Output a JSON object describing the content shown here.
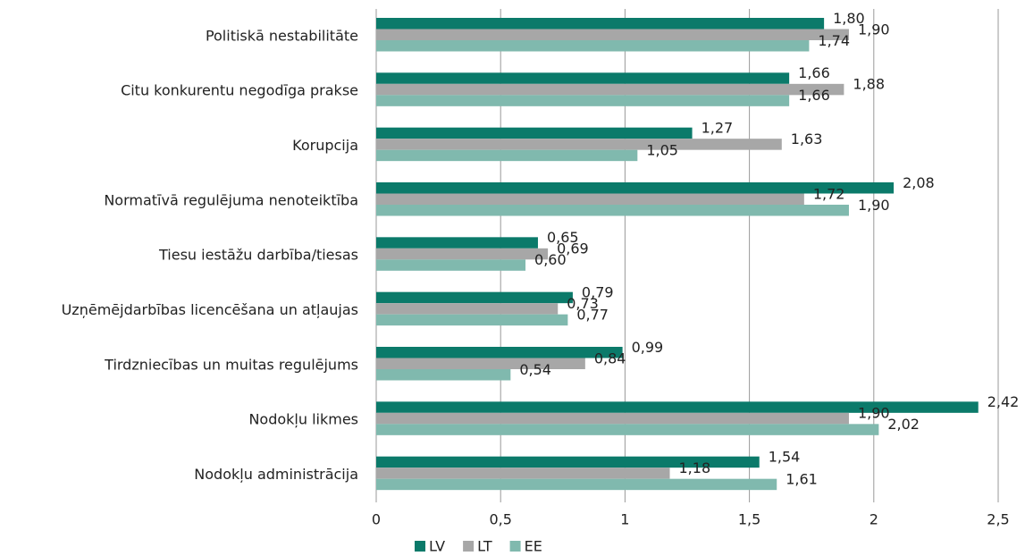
{
  "chart_data": {
    "type": "bar",
    "orientation": "horizontal",
    "categories": [
      "Politiskā nestabilitāte",
      "Citu konkurentu negodīga prakse",
      "Korupcija",
      "Normatīvā regulējuma nenoteiktība",
      "Tiesu iestāžu darbība/tiesas",
      "Uzņēmējdarbības licencēšana un atļaujas",
      "Tirdzniecības un muitas regulējums",
      "Nodokļu likmes",
      "Nodokļu administrācija"
    ],
    "series": [
      {
        "name": "LV",
        "color": "#0b7a6a",
        "values": [
          1.8,
          1.66,
          1.27,
          2.08,
          0.65,
          0.79,
          0.99,
          2.42,
          1.54
        ],
        "value_labels": [
          "1,80",
          "1,66",
          "1,27",
          "2,08",
          "0,65",
          "0,79",
          "0,99",
          "2,42",
          "1,54"
        ]
      },
      {
        "name": "LT",
        "color": "#a7a7a7",
        "values": [
          1.9,
          1.88,
          1.63,
          1.72,
          0.69,
          0.73,
          0.84,
          1.9,
          1.18
        ],
        "value_labels": [
          "1,90",
          "1,88",
          "1,63",
          "1,72",
          "0,69",
          "0,73",
          "0,84",
          "1,90",
          "1,18"
        ]
      },
      {
        "name": "EE",
        "color": "#80b9ae",
        "values": [
          1.74,
          1.66,
          1.05,
          1.9,
          0.6,
          0.77,
          0.54,
          2.02,
          1.61
        ],
        "value_labels": [
          "1,74",
          "1,66",
          "1,05",
          "1,90",
          "0,60",
          "0,77",
          "0,54",
          "2,02",
          "1,61"
        ]
      }
    ],
    "xlim": [
      0,
      2.5
    ],
    "xticks": [
      0,
      {
        "value": 0.5,
        "label": "0,5"
      },
      1,
      {
        "value": 1.5,
        "label": "1,5"
      },
      2,
      {
        "value": 2.5,
        "label": "2,5"
      }
    ],
    "grid": true,
    "legend": "bottom"
  }
}
